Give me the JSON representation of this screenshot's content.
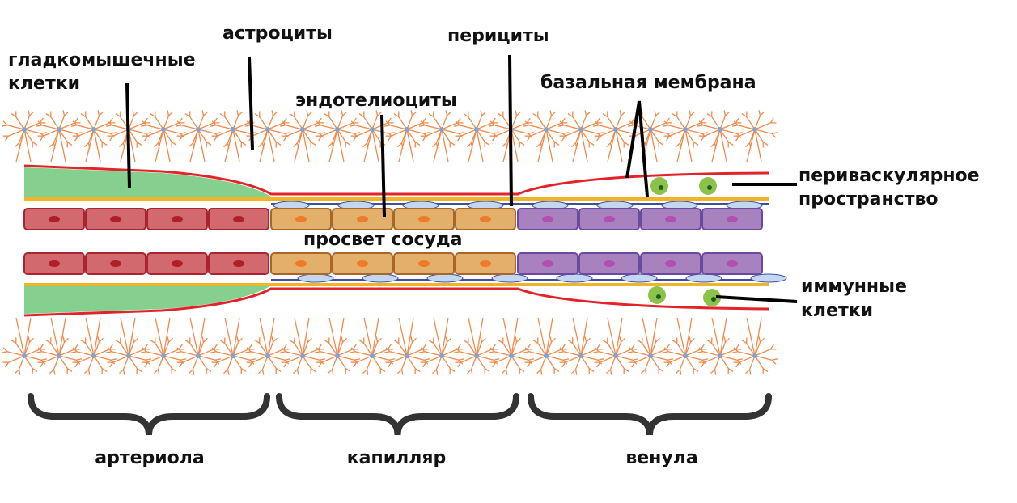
{
  "labels": {
    "smooth_muscle": [
      "гладкомышечные",
      "клетки"
    ],
    "astrocytes": "астроциты",
    "pericytes": "перициты",
    "endothelial": "эндотелиоциты",
    "basement_membrane": "базальная мембрана",
    "perivascular": [
      "периваскулярное",
      "пространство"
    ],
    "lumen": "просвет сосуда",
    "immune": [
      "иммунные",
      "клетки"
    ]
  },
  "segments": [
    "артериола",
    "капилляр",
    "венула"
  ]
}
